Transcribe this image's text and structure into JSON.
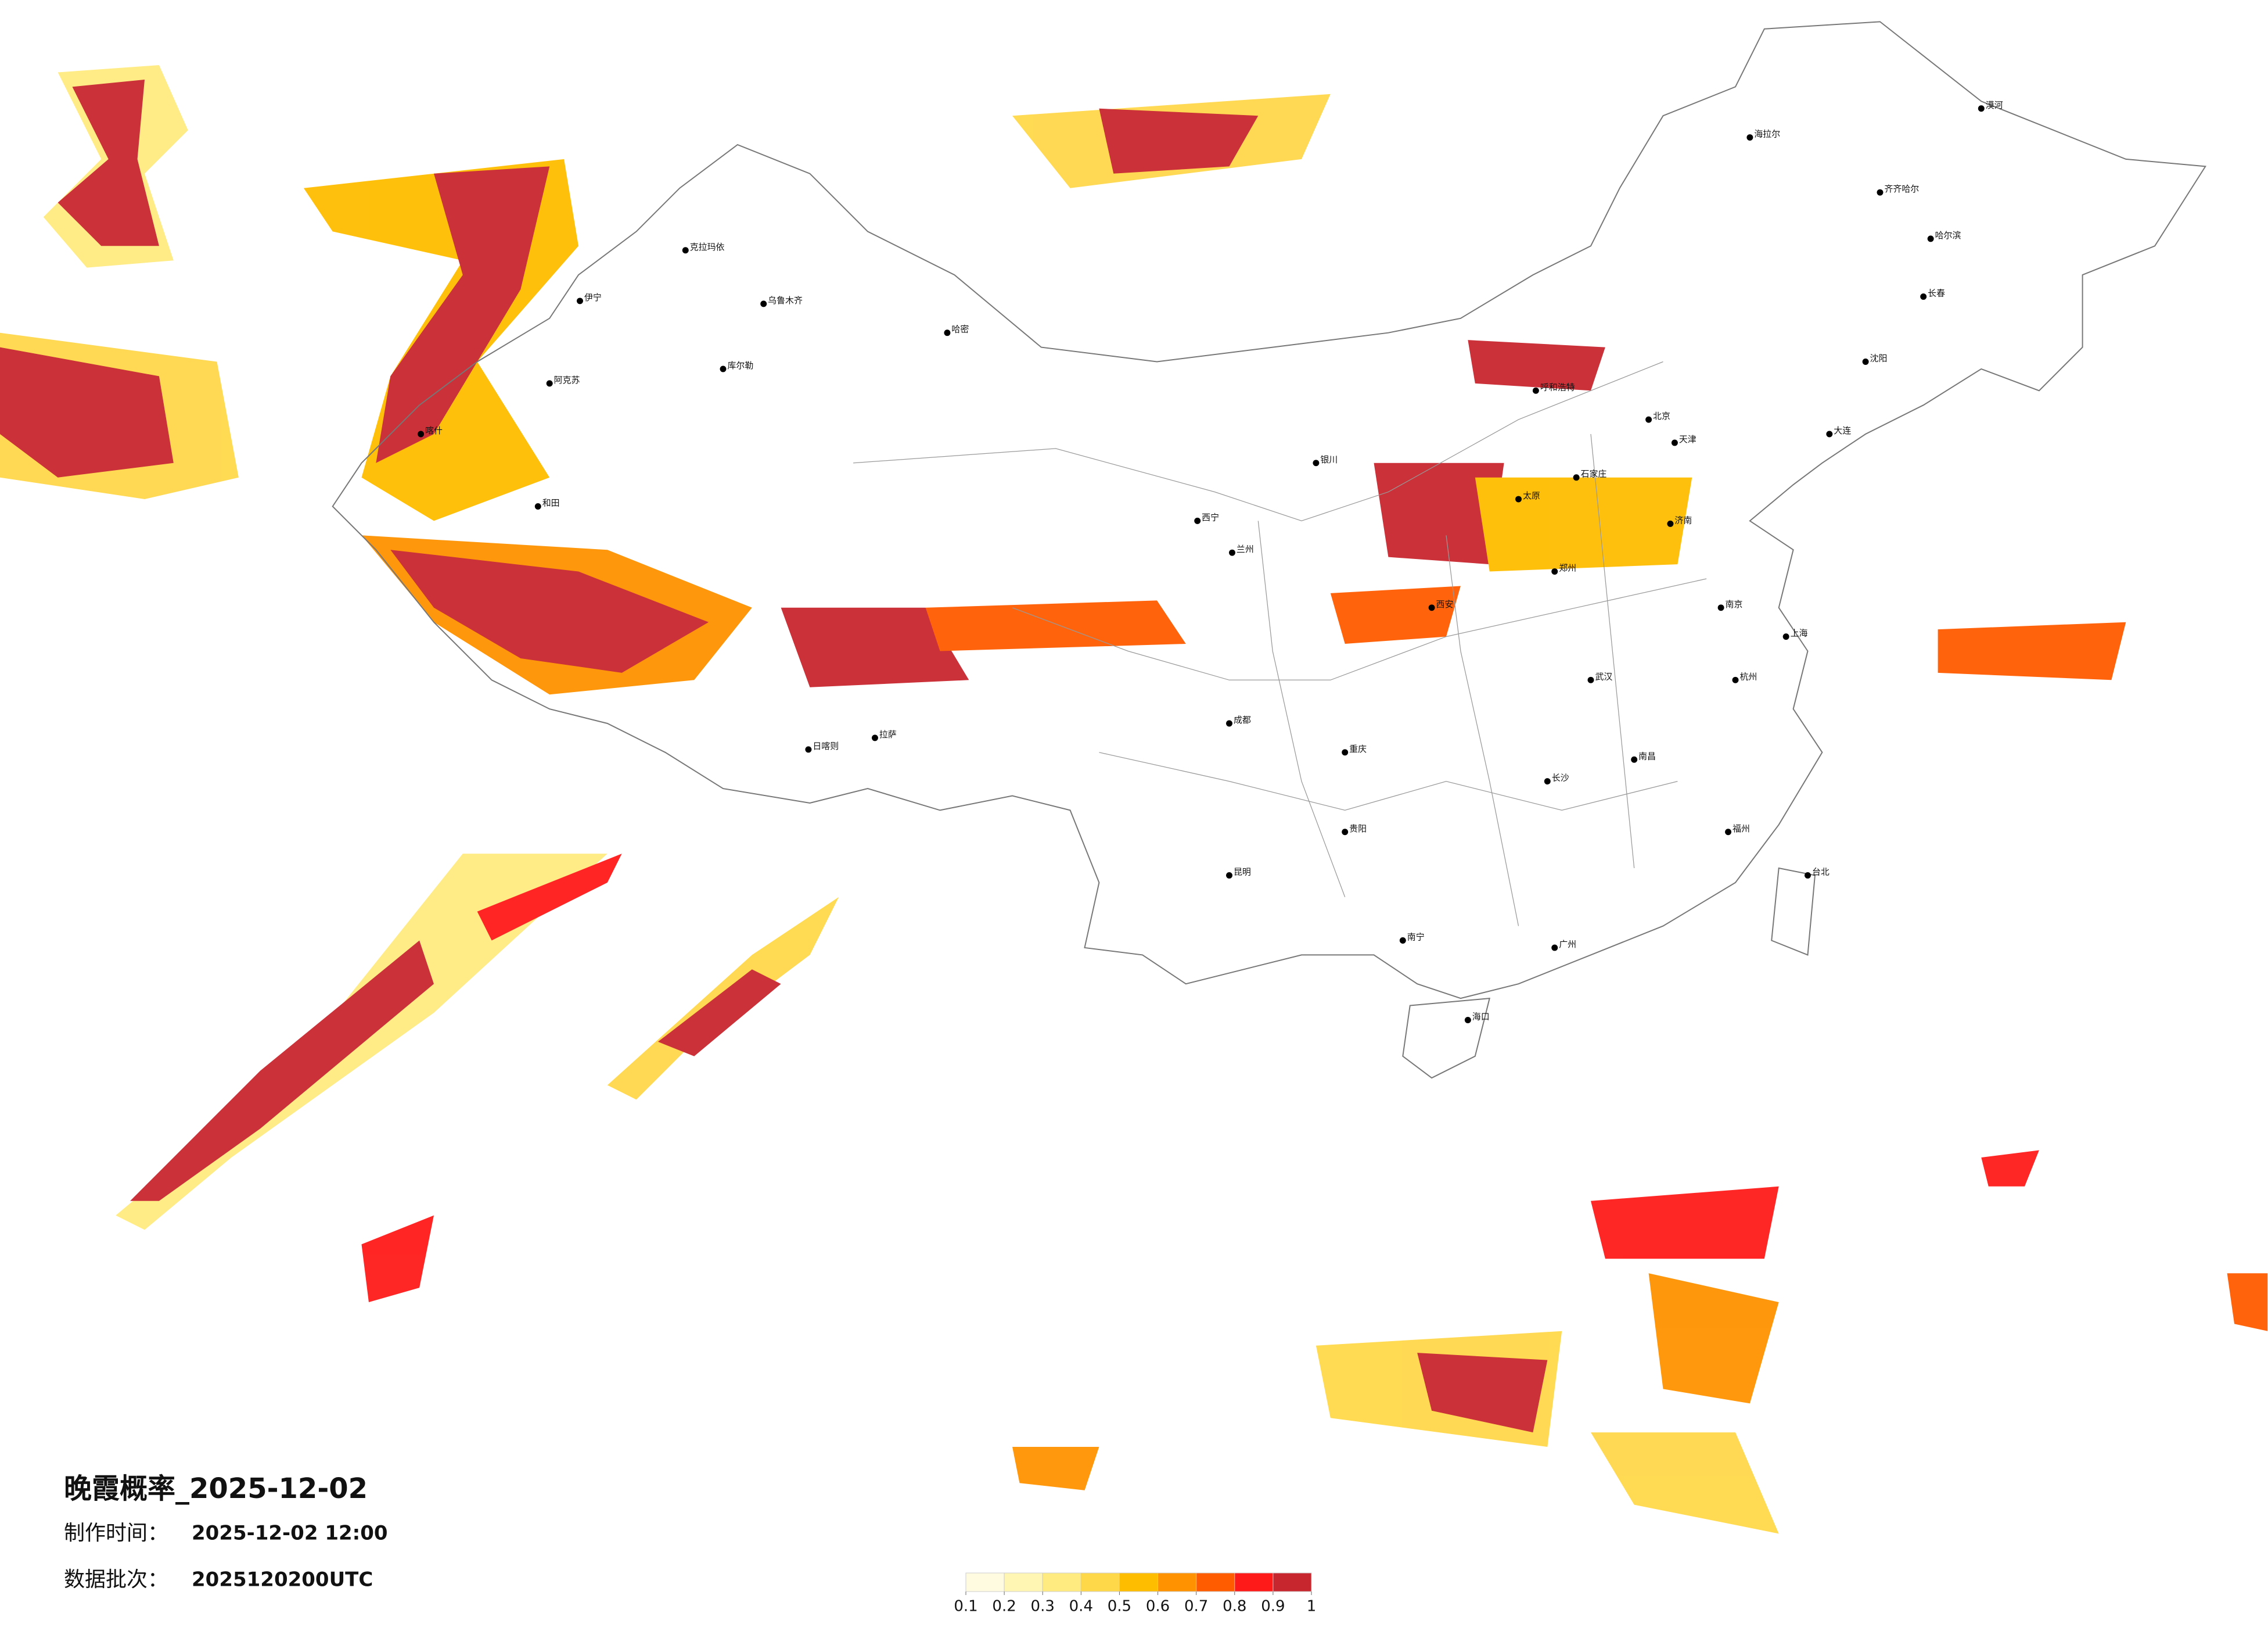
{
  "header": {
    "title": "晚霞概率_2025-12-02",
    "made_label": "制作时间：",
    "made_value": "2025-12-02 12:00",
    "batch_label": "数据批次：",
    "batch_value": "2025120200UTC"
  },
  "legend": {
    "colors": [
      "#fffbe0",
      "#fff6b3",
      "#ffeb80",
      "#ffd84a",
      "#ffbd00",
      "#ff9200",
      "#ff5c00",
      "#ff1a1a",
      "#c8262e"
    ],
    "ticks": [
      0.1,
      0.2,
      0.3,
      0.4,
      0.5,
      0.6,
      0.7,
      0.8,
      0.9,
      1
    ]
  },
  "cities": [
    "漠河",
    "海拉尔",
    "齐齐哈尔",
    "哈尔滨",
    "长春",
    "沈阳",
    "大连",
    "克拉玛依",
    "伊宁",
    "乌鲁木齐",
    "库尔勒",
    "阿克苏",
    "喀什",
    "和田",
    "哈密",
    "拉萨",
    "日喀则",
    "西宁",
    "兰州",
    "银川",
    "呼和浩特",
    "北京",
    "天津",
    "石家庄",
    "太原",
    "济南",
    "郑州",
    "西安",
    "成都",
    "重庆",
    "武汉",
    "南京",
    "上海",
    "杭州",
    "长沙",
    "南昌",
    "福州",
    "台北",
    "贵阳",
    "昆明",
    "南宁",
    "广州",
    "海口"
  ]
}
